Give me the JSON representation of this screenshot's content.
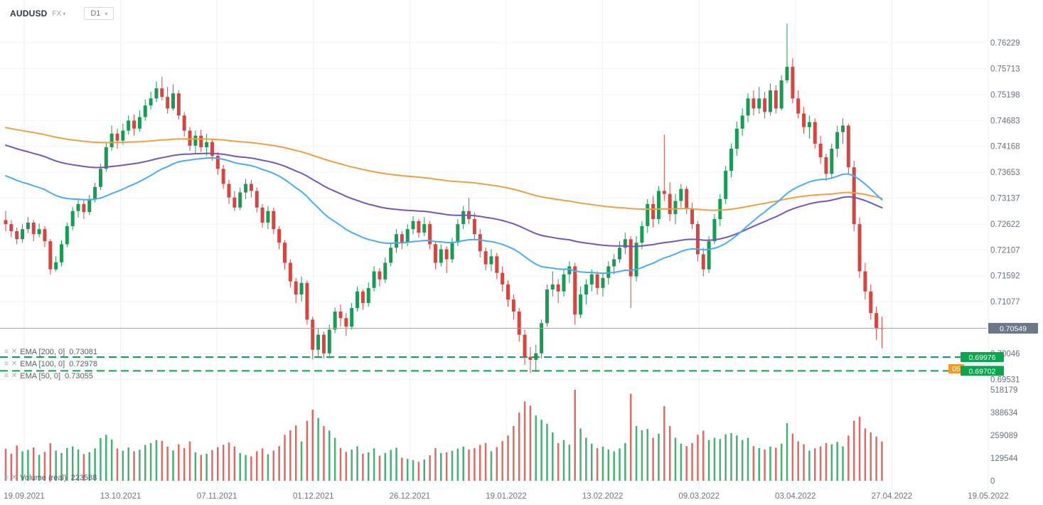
{
  "toolbar": {
    "symbol": "AUDUSD",
    "market": "FX",
    "timeframe": "D1"
  },
  "legend": {
    "indicators": [
      {
        "name": "EMA  [200,  0]",
        "value": "0.73081"
      },
      {
        "name": "EMA  [100,  0]",
        "value": "0.72978"
      },
      {
        "name": "EMA  [50,  0]",
        "value": "0.73055"
      }
    ],
    "volume_label": "Volume  (real)",
    "volume_value": "223588"
  },
  "chart_data": {
    "type": "candlestick",
    "symbol": "AUDUSD",
    "timeframe": "D1",
    "price_axis": {
      "top_tick": 0.76229,
      "tick_step": 0.00515,
      "tick_labels": [
        "0.76229",
        "0.75713",
        "0.75198",
        "0.74683",
        "0.74168",
        "0.73653",
        "0.73137",
        "0.72622",
        "0.72107",
        "0.71592",
        "0.71077",
        "0.70046",
        "0.69531"
      ]
    },
    "volume_axis": {
      "max": 518179,
      "tick_labels": [
        "518179",
        "388634",
        "259089",
        "129544",
        "0"
      ]
    },
    "x_axis": {
      "tick_labels": [
        "19.09.2021",
        "13.10.2021",
        "07.11.2021",
        "01.12.2021",
        "26.12.2021",
        "19.01.2022",
        "13.02.2022",
        "09.03.2022",
        "03.04.2022",
        "27.04.2022",
        "19.05.2022"
      ]
    },
    "current_price": {
      "label": "0.70549",
      "value": 0.70549
    },
    "support_lines": [
      {
        "label": "0.69976",
        "value": 0.69976
      },
      {
        "label": "0.69702",
        "value": 0.69702
      }
    ],
    "partial_badge": {
      "text": "05",
      "value": 0.698
    },
    "emas": [
      {
        "period": 200,
        "seed": 0.7456,
        "color": "#f0a03c",
        "last_value": "0.73081"
      },
      {
        "period": 100,
        "seed": 0.7422,
        "color": "#7456b8",
        "last_value": "0.72978"
      },
      {
        "period": 50,
        "seed": 0.7362,
        "color": "#45aef5",
        "last_value": "0.73055"
      }
    ],
    "colors": {
      "up": "#169d53",
      "down": "#d6453f",
      "support": "#0aa64e",
      "current_line": "#9aa6b1",
      "current_badge": "#6b7888",
      "partial_badge": "#f59b25",
      "grid": "#f1f3f5",
      "vgrid": "#edf0f2"
    },
    "candles_format": "[close, high, low, volume]; open = previous close",
    "first_open": 0.727,
    "candles": [
      [
        0.7262,
        0.7288,
        0.7248,
        182000
      ],
      [
        0.7248,
        0.727,
        0.7236,
        154000
      ],
      [
        0.7232,
        0.7255,
        0.7222,
        201000
      ],
      [
        0.7252,
        0.7262,
        0.7225,
        168000
      ],
      [
        0.7265,
        0.7276,
        0.7244,
        176000
      ],
      [
        0.7242,
        0.727,
        0.7228,
        190000
      ],
      [
        0.7252,
        0.7263,
        0.7236,
        148000
      ],
      [
        0.7228,
        0.7258,
        0.7216,
        165000
      ],
      [
        0.7172,
        0.7232,
        0.7162,
        214000
      ],
      [
        0.7186,
        0.7198,
        0.7168,
        172000
      ],
      [
        0.7222,
        0.723,
        0.7178,
        158000
      ],
      [
        0.7258,
        0.7265,
        0.7216,
        187000
      ],
      [
        0.7288,
        0.7296,
        0.725,
        196000
      ],
      [
        0.7302,
        0.7312,
        0.7275,
        178000
      ],
      [
        0.7286,
        0.731,
        0.7272,
        152000
      ],
      [
        0.7312,
        0.732,
        0.728,
        163000
      ],
      [
        0.7336,
        0.7344,
        0.7305,
        185000
      ],
      [
        0.7372,
        0.7382,
        0.733,
        243000
      ],
      [
        0.7415,
        0.7425,
        0.7366,
        262000
      ],
      [
        0.7442,
        0.7458,
        0.7408,
        235000
      ],
      [
        0.7428,
        0.7452,
        0.7412,
        184000
      ],
      [
        0.7448,
        0.7462,
        0.742,
        172000
      ],
      [
        0.7468,
        0.7478,
        0.744,
        190000
      ],
      [
        0.7452,
        0.748,
        0.7438,
        168000
      ],
      [
        0.7475,
        0.7488,
        0.7446,
        177000
      ],
      [
        0.7498,
        0.751,
        0.7468,
        204000
      ],
      [
        0.7512,
        0.7525,
        0.749,
        215000
      ],
      [
        0.7532,
        0.7546,
        0.7505,
        232000
      ],
      [
        0.7515,
        0.7555,
        0.7508,
        228000
      ],
      [
        0.7492,
        0.7535,
        0.7482,
        195000
      ],
      [
        0.7522,
        0.754,
        0.7488,
        173000
      ],
      [
        0.7478,
        0.7528,
        0.747,
        208000
      ],
      [
        0.7448,
        0.7485,
        0.7436,
        186000
      ],
      [
        0.7418,
        0.7455,
        0.7408,
        224000
      ],
      [
        0.7438,
        0.7448,
        0.7402,
        162000
      ],
      [
        0.7415,
        0.745,
        0.7405,
        148000
      ],
      [
        0.7425,
        0.7442,
        0.7398,
        154000
      ],
      [
        0.7398,
        0.7432,
        0.7388,
        175000
      ],
      [
        0.7372,
        0.7405,
        0.736,
        192000
      ],
      [
        0.7342,
        0.738,
        0.7332,
        205000
      ],
      [
        0.7315,
        0.735,
        0.7302,
        218000
      ],
      [
        0.7295,
        0.7328,
        0.7288,
        196000
      ],
      [
        0.7325,
        0.7335,
        0.729,
        158000
      ],
      [
        0.7342,
        0.7352,
        0.7312,
        147000
      ],
      [
        0.7328,
        0.735,
        0.7315,
        139000
      ],
      [
        0.7295,
        0.7335,
        0.7285,
        168000
      ],
      [
        0.7265,
        0.7302,
        0.7255,
        185000
      ],
      [
        0.7288,
        0.7298,
        0.7252,
        151000
      ],
      [
        0.7252,
        0.7295,
        0.7242,
        172000
      ],
      [
        0.7225,
        0.7258,
        0.7212,
        198000
      ],
      [
        0.7185,
        0.723,
        0.7172,
        262000
      ],
      [
        0.7148,
        0.7192,
        0.7136,
        287000
      ],
      [
        0.7122,
        0.7155,
        0.7105,
        315000
      ],
      [
        0.7145,
        0.7158,
        0.7108,
        224000
      ],
      [
        0.7072,
        0.715,
        0.7062,
        342000
      ],
      [
        0.7012,
        0.7078,
        0.6993,
        405000
      ],
      [
        0.7042,
        0.7055,
        0.6998,
        358000
      ],
      [
        0.7005,
        0.7048,
        0.6995,
        312000
      ],
      [
        0.7052,
        0.7062,
        0.7,
        286000
      ],
      [
        0.7088,
        0.7096,
        0.7045,
        245000
      ],
      [
        0.7075,
        0.7102,
        0.7058,
        187000
      ],
      [
        0.7058,
        0.7085,
        0.704,
        165000
      ],
      [
        0.7095,
        0.7105,
        0.7052,
        178000
      ],
      [
        0.7128,
        0.7138,
        0.7088,
        196000
      ],
      [
        0.7105,
        0.7132,
        0.7092,
        154000
      ],
      [
        0.7135,
        0.7146,
        0.7098,
        162000
      ],
      [
        0.7168,
        0.7178,
        0.7128,
        185000
      ],
      [
        0.7152,
        0.7175,
        0.7138,
        143000
      ],
      [
        0.7185,
        0.7196,
        0.7145,
        158000
      ],
      [
        0.7215,
        0.7225,
        0.7178,
        176000
      ],
      [
        0.7242,
        0.7252,
        0.7205,
        188000
      ],
      [
        0.7225,
        0.7248,
        0.7212,
        132000
      ],
      [
        0.7252,
        0.7262,
        0.7218,
        125000
      ],
      [
        0.7268,
        0.7278,
        0.7242,
        118000
      ],
      [
        0.7245,
        0.7272,
        0.7235,
        108000
      ],
      [
        0.7262,
        0.7276,
        0.7238,
        121000
      ],
      [
        0.7222,
        0.7268,
        0.7212,
        145000
      ],
      [
        0.7185,
        0.7228,
        0.7172,
        186000
      ],
      [
        0.7212,
        0.7222,
        0.7178,
        158000
      ],
      [
        0.7192,
        0.7218,
        0.7165,
        162000
      ],
      [
        0.7225,
        0.7235,
        0.7185,
        171000
      ],
      [
        0.7262,
        0.7272,
        0.7218,
        183000
      ],
      [
        0.7288,
        0.7298,
        0.7252,
        195000
      ],
      [
        0.7272,
        0.7314,
        0.7262,
        178000
      ],
      [
        0.7242,
        0.7285,
        0.7232,
        186000
      ],
      [
        0.7208,
        0.7252,
        0.7196,
        204000
      ],
      [
        0.7182,
        0.7215,
        0.717,
        215000
      ],
      [
        0.7198,
        0.7212,
        0.7168,
        168000
      ],
      [
        0.7165,
        0.7205,
        0.7152,
        192000
      ],
      [
        0.7142,
        0.7178,
        0.7128,
        226000
      ],
      [
        0.7112,
        0.715,
        0.7098,
        258000
      ],
      [
        0.7088,
        0.7122,
        0.7072,
        312000
      ],
      [
        0.7042,
        0.7095,
        0.7028,
        388000
      ],
      [
        0.6998,
        0.7052,
        0.6982,
        452000
      ],
      [
        0.6992,
        0.7018,
        0.6966,
        428000
      ],
      [
        0.7005,
        0.7022,
        0.6968,
        372000
      ],
      [
        0.7065,
        0.7072,
        0.6995,
        348000
      ],
      [
        0.7132,
        0.7142,
        0.7058,
        325000
      ],
      [
        0.7142,
        0.7168,
        0.7118,
        276000
      ],
      [
        0.7128,
        0.7152,
        0.7105,
        215000
      ],
      [
        0.7162,
        0.7172,
        0.7118,
        232000
      ],
      [
        0.7178,
        0.7188,
        0.7145,
        205000
      ],
      [
        0.7082,
        0.7185,
        0.7062,
        518179
      ],
      [
        0.7122,
        0.7138,
        0.7075,
        298000
      ],
      [
        0.7142,
        0.7152,
        0.7102,
        245000
      ],
      [
        0.7162,
        0.7172,
        0.7128,
        212000
      ],
      [
        0.7135,
        0.7168,
        0.7122,
        186000
      ],
      [
        0.7155,
        0.7165,
        0.7118,
        195000
      ],
      [
        0.7178,
        0.7188,
        0.7142,
        178000
      ],
      [
        0.7192,
        0.7202,
        0.7162,
        168000
      ],
      [
        0.7215,
        0.7228,
        0.7185,
        185000
      ],
      [
        0.7232,
        0.7245,
        0.7202,
        215000
      ],
      [
        0.7158,
        0.7238,
        0.7095,
        495000
      ],
      [
        0.7225,
        0.7238,
        0.7148,
        312000
      ],
      [
        0.7258,
        0.7268,
        0.7212,
        288000
      ],
      [
        0.7302,
        0.7312,
        0.7245,
        295000
      ],
      [
        0.7272,
        0.7318,
        0.7255,
        245000
      ],
      [
        0.7328,
        0.7338,
        0.7262,
        268000
      ],
      [
        0.7322,
        0.744,
        0.7308,
        425000
      ],
      [
        0.7282,
        0.7345,
        0.7268,
        312000
      ],
      [
        0.7308,
        0.7322,
        0.7262,
        245000
      ],
      [
        0.7332,
        0.7342,
        0.7295,
        212000
      ],
      [
        0.7292,
        0.7338,
        0.7282,
        198000
      ],
      [
        0.7262,
        0.7305,
        0.7252,
        215000
      ],
      [
        0.7202,
        0.7268,
        0.7188,
        262000
      ],
      [
        0.7172,
        0.7215,
        0.7158,
        285000
      ],
      [
        0.7228,
        0.7238,
        0.7165,
        232000
      ],
      [
        0.7272,
        0.7282,
        0.7222,
        245000
      ],
      [
        0.7312,
        0.7322,
        0.7258,
        238000
      ],
      [
        0.7368,
        0.7378,
        0.7302,
        265000
      ],
      [
        0.7412,
        0.7422,
        0.7355,
        272000
      ],
      [
        0.7452,
        0.7466,
        0.7398,
        258000
      ],
      [
        0.7478,
        0.7492,
        0.7438,
        232000
      ],
      [
        0.7512,
        0.7522,
        0.7465,
        245000
      ],
      [
        0.7492,
        0.7528,
        0.7478,
        198000
      ],
      [
        0.7512,
        0.7535,
        0.7482,
        186000
      ],
      [
        0.7485,
        0.7525,
        0.7472,
        178000
      ],
      [
        0.7528,
        0.7542,
        0.7478,
        195000
      ],
      [
        0.7492,
        0.7538,
        0.7482,
        188000
      ],
      [
        0.7548,
        0.7558,
        0.7488,
        212000
      ],
      [
        0.7575,
        0.7661,
        0.7542,
        328000
      ],
      [
        0.7512,
        0.7592,
        0.7502,
        268000
      ],
      [
        0.7482,
        0.7528,
        0.7472,
        225000
      ],
      [
        0.7455,
        0.7495,
        0.7442,
        208000
      ],
      [
        0.7465,
        0.7478,
        0.7432,
        172000
      ],
      [
        0.7422,
        0.7472,
        0.7412,
        185000
      ],
      [
        0.7395,
        0.7438,
        0.7382,
        196000
      ],
      [
        0.7362,
        0.7402,
        0.7348,
        215000
      ],
      [
        0.7412,
        0.7422,
        0.7352,
        208000
      ],
      [
        0.7445,
        0.7458,
        0.7395,
        222000
      ],
      [
        0.7458,
        0.7472,
        0.7422,
        196000
      ],
      [
        0.7375,
        0.7462,
        0.7362,
        258000
      ],
      [
        0.7262,
        0.7388,
        0.7248,
        342000
      ],
      [
        0.7168,
        0.7275,
        0.7155,
        365000
      ],
      [
        0.7128,
        0.7185,
        0.7112,
        298000
      ],
      [
        0.7085,
        0.7142,
        0.7072,
        276000
      ],
      [
        0.7055,
        0.7098,
        0.7032,
        252000
      ],
      [
        0.70549,
        0.7078,
        0.7015,
        223588
      ]
    ]
  }
}
